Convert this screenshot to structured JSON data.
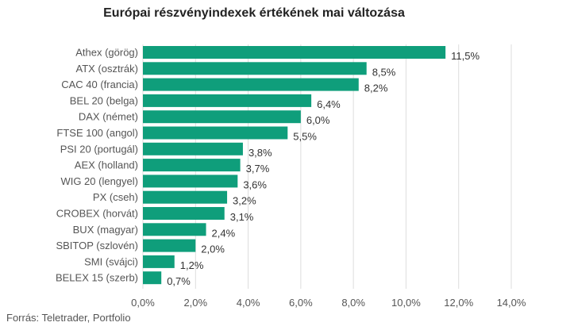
{
  "chart_data": {
    "type": "bar",
    "orientation": "horizontal",
    "title": "Európai részvényindexek értékének mai változása",
    "xlabel": "",
    "ylabel": "",
    "xlim": [
      0,
      14
    ],
    "grid": true,
    "bar_color": "#0f9e7b",
    "grid_color": "#dddddd",
    "categories": [
      "Athex (görög)",
      "ATX (osztrák)",
      "CAC 40 (francia)",
      "BEL 20 (belga)",
      "DAX (német)",
      "FTSE 100 (angol)",
      "PSI 20 (portugál)",
      "AEX (holland)",
      "WIG 20 (lengyel)",
      "PX (cseh)",
      "CROBEX (horvát)",
      "BUX (magyar)",
      "SBITOP (szlovén)",
      "SMI (svájci)",
      "BELEX 15 (szerb)"
    ],
    "values": [
      11.5,
      8.5,
      8.2,
      6.4,
      6.0,
      5.5,
      3.8,
      3.7,
      3.6,
      3.2,
      3.1,
      2.4,
      2.0,
      1.2,
      0.7
    ],
    "value_labels": [
      "11,5%",
      "8,5%",
      "8,2%",
      "6,4%",
      "6,0%",
      "5,5%",
      "3,8%",
      "3,7%",
      "3,6%",
      "3,2%",
      "3,1%",
      "2,4%",
      "2,0%",
      "1,2%",
      "0,7%"
    ],
    "x_ticks": [
      0,
      2,
      4,
      6,
      8,
      10,
      12,
      14
    ],
    "x_tick_labels": [
      "0,0%",
      "2,0%",
      "4,0%",
      "6,0%",
      "8,0%",
      "10,0%",
      "12,0%",
      "14,0%"
    ]
  },
  "source": "Forrás: Teletrader, Portfolio"
}
